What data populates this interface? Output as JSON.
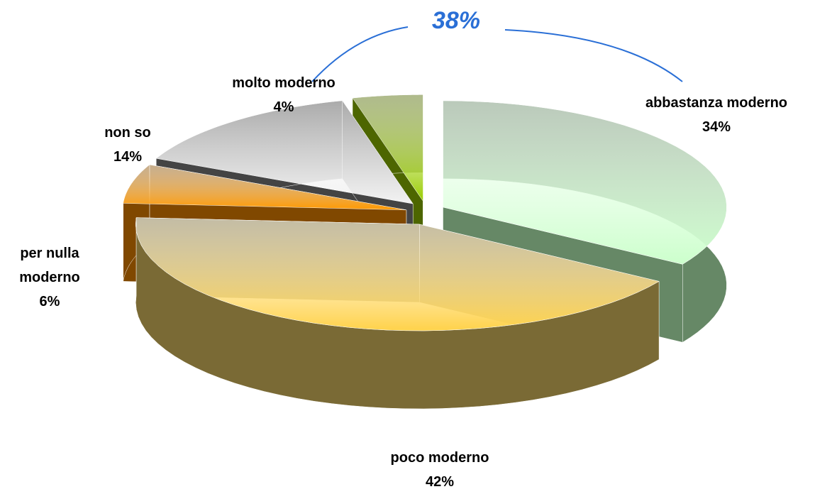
{
  "chart_data": {
    "type": "pie3d",
    "categories": [
      "abbastanza moderno",
      "poco moderno",
      "per nulla moderno",
      "non so",
      "molto moderno"
    ],
    "values": [
      34,
      42,
      6,
      14,
      4
    ],
    "value_labels": [
      "34%",
      "42%",
      "6%",
      "14%",
      "4%"
    ],
    "colors": [
      "#ccffcc",
      "#ffd24a",
      "#ff9900",
      "#f2f2f2",
      "#99cc00"
    ],
    "side_colors": [
      "#668866",
      "#7a6a35",
      "#804800",
      "#444444",
      "#4d6600"
    ],
    "annotation": "38%"
  }
}
